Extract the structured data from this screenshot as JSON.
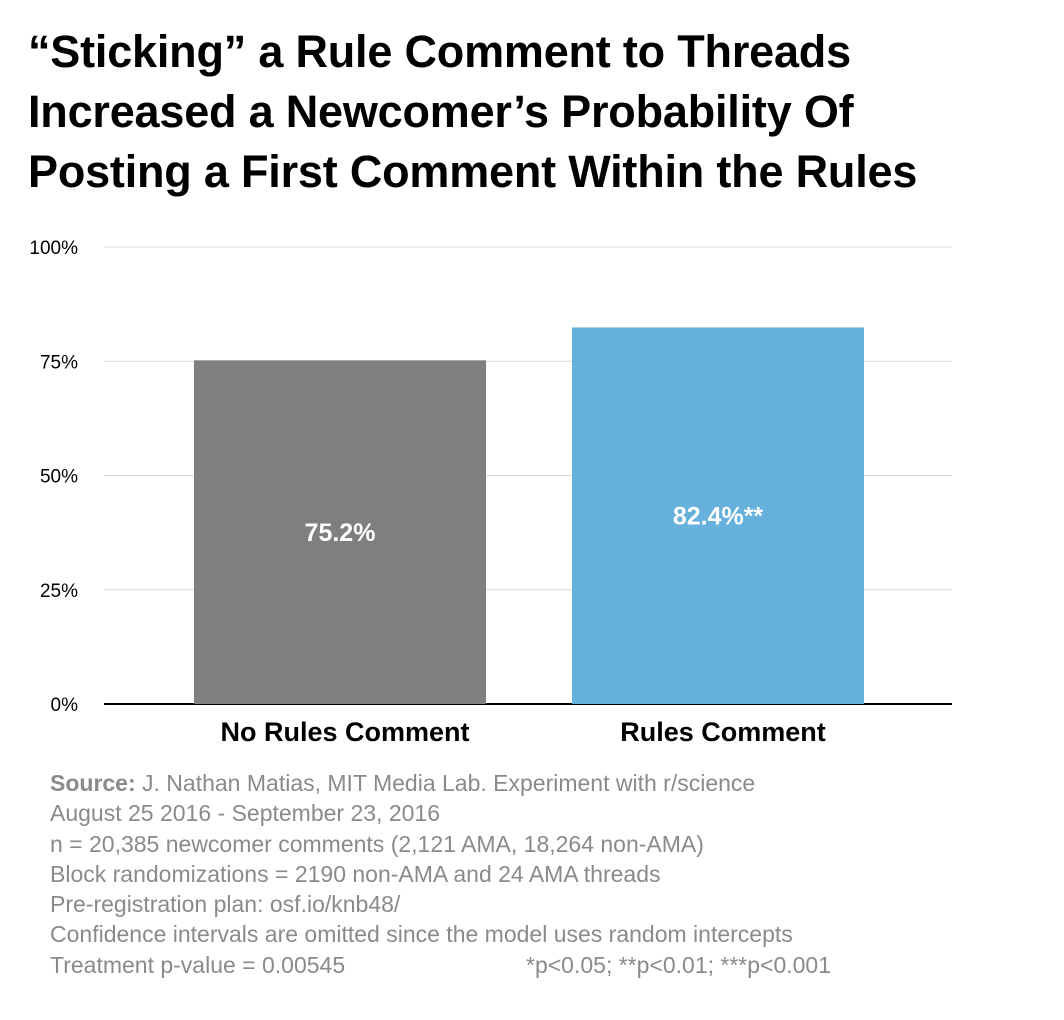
{
  "title_lines": [
    "“Sticking” a Rule Comment to Threads",
    "Increased a Newcomer’s Probability Of",
    "Posting a First Comment Within the Rules"
  ],
  "chart_data": {
    "type": "bar",
    "categories": [
      "No Rules Comment",
      "Rules Comment"
    ],
    "values": [
      75.2,
      82.4
    ],
    "data_labels": [
      "75.2%",
      "82.4%**"
    ],
    "colors": [
      "#7f7f7f",
      "#66b0dc"
    ],
    "ylim": [
      0,
      100
    ],
    "yticks": [
      0,
      25,
      50,
      75,
      100
    ],
    "ytick_labels": [
      "0%",
      "25%",
      "50%",
      "75%",
      "100%"
    ],
    "grid": true,
    "xlabel": "",
    "ylabel": ""
  },
  "notes": {
    "source_label": "Source:",
    "source_text": " J. Nathan Matias, MIT Media Lab. Experiment with r/science",
    "lines": [
      "August 25 2016 - September 23, 2016",
      "n = 20,385 newcomer comments (2,121 AMA, 18,264 non-AMA)",
      "Block randomizations = 2190 non-AMA and 24 AMA threads",
      "Pre-registration plan: osf.io/knb48/",
      "Confidence intervals are omitted since the model uses random intercepts"
    ],
    "pvalue": "Treatment p-value = 0.00545",
    "significance": "*p<0.05; **p<0.01; ***p<0.001"
  }
}
